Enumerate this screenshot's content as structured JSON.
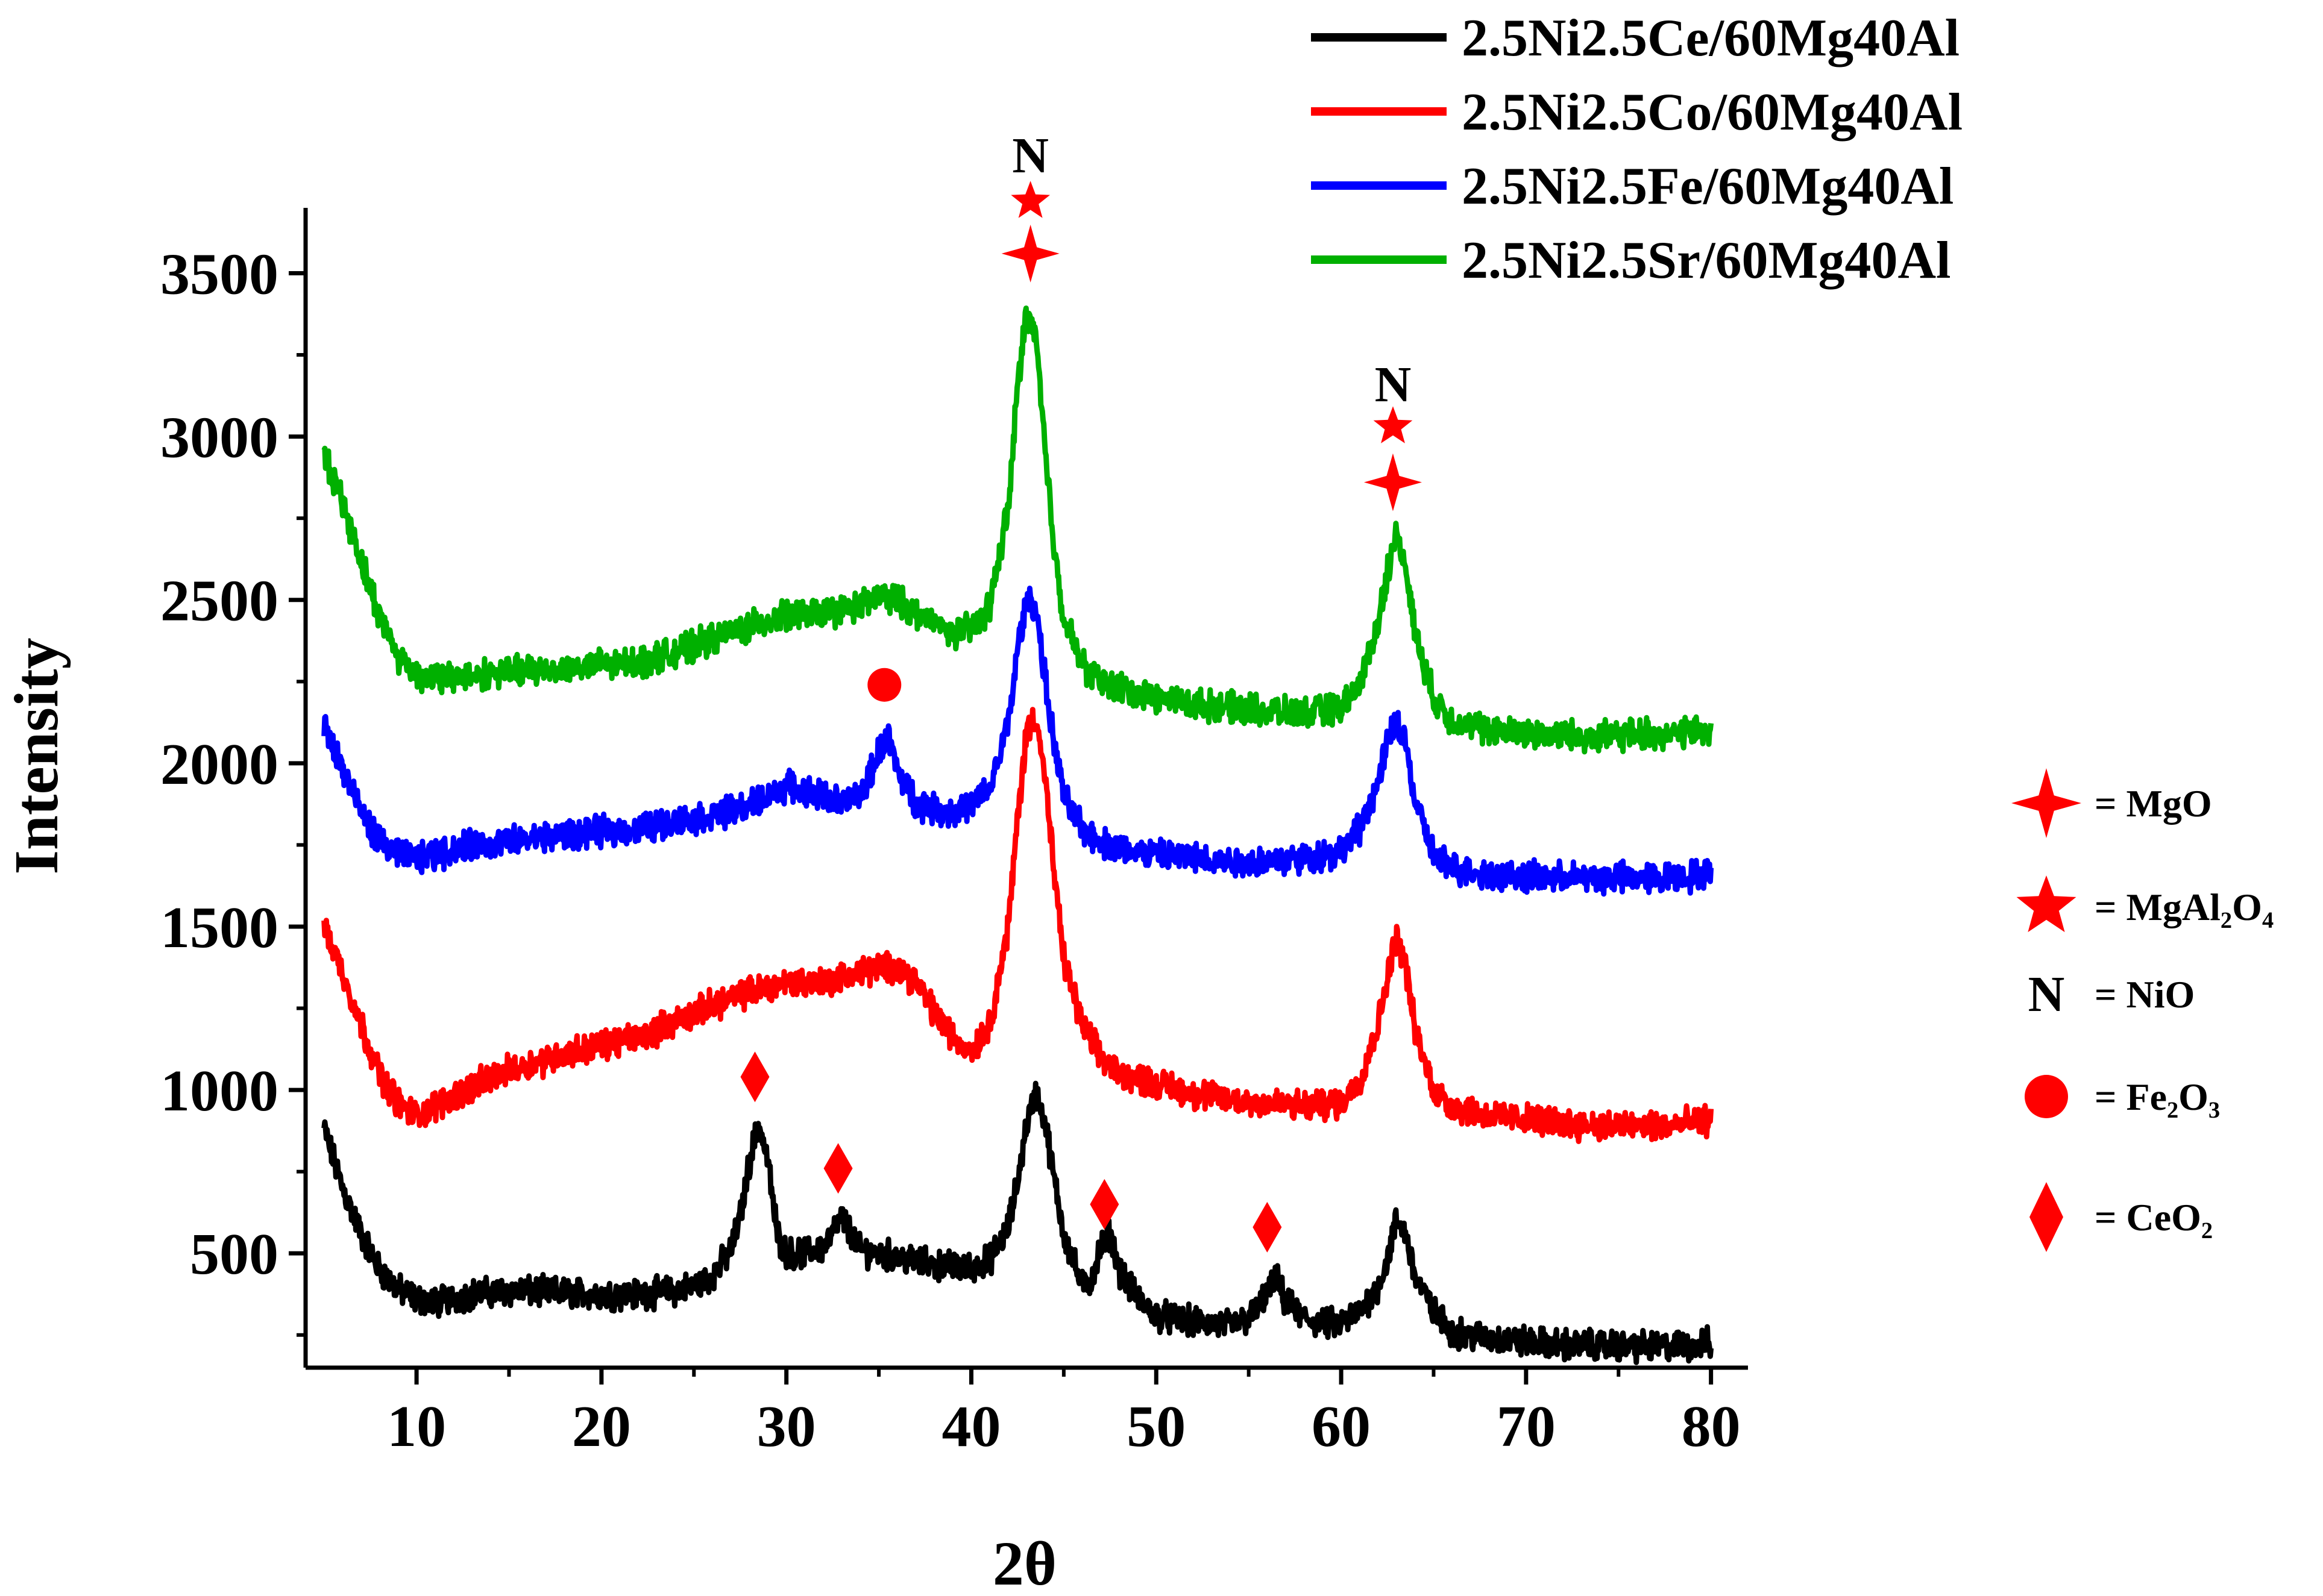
{
  "chart_data": {
    "type": "line",
    "title": "",
    "xlabel": "2θ",
    "ylabel": "Intensity",
    "xlim": [
      4,
      82
    ],
    "ylim": [
      150,
      3700
    ],
    "x_ticks": [
      10,
      20,
      30,
      40,
      50,
      60,
      70,
      80
    ],
    "y_ticks": [
      500,
      1000,
      1500,
      2000,
      2500,
      3000,
      3500
    ],
    "grid": false,
    "legend_position": "top-right",
    "series": [
      {
        "name": "2.5Ni2.5Ce/60Mg40Al",
        "color": "#000000",
        "x": [
          5,
          6,
          7,
          8,
          9,
          10,
          11,
          13,
          15,
          18,
          20,
          22,
          24,
          25,
          26,
          27,
          27.5,
          28,
          28.5,
          29,
          29.5,
          30,
          31,
          32,
          32.5,
          33,
          33.5,
          34,
          35,
          36,
          37,
          38,
          39,
          40,
          41,
          42,
          42.5,
          43,
          43.5,
          44,
          44.5,
          45,
          46,
          46.5,
          47,
          47.5,
          48,
          49,
          50,
          52,
          54,
          55,
          55.5,
          56,
          56.5,
          57,
          58,
          59,
          60,
          61,
          62,
          62.5,
          63,
          63.5,
          64,
          65,
          66,
          68,
          70,
          72,
          74,
          76,
          78,
          80
        ],
        "values": [
          880,
          700,
          560,
          450,
          390,
          360,
          350,
          375,
          385,
          380,
          375,
          375,
          385,
          400,
          430,
          510,
          610,
          780,
          900,
          780,
          560,
          500,
          500,
          520,
          560,
          610,
          560,
          510,
          500,
          490,
          475,
          465,
          460,
          455,
          480,
          580,
          720,
          900,
          990,
          900,
          720,
          560,
          400,
          420,
          520,
          560,
          450,
          360,
          310,
          290,
          280,
          300,
          330,
          380,
          420,
          350,
          300,
          285,
          285,
          320,
          400,
          480,
          600,
          560,
          430,
          320,
          260,
          240,
          230,
          220,
          220,
          215,
          215,
          225
        ]
      },
      {
        "name": "2.5Ni2.5Co/60Mg40Al",
        "color": "#ff0000",
        "x": [
          5,
          6,
          7,
          8,
          9,
          10,
          11,
          13,
          15,
          18,
          20,
          22,
          24,
          26,
          28,
          30,
          32,
          34,
          35,
          36,
          37,
          38,
          39,
          40,
          41,
          42,
          42.5,
          43,
          43.5,
          44,
          44.5,
          45,
          46,
          47,
          48,
          50,
          52,
          54,
          56,
          58,
          60,
          61,
          62,
          62.5,
          63,
          63.5,
          64,
          65,
          66,
          68,
          70,
          72,
          74,
          76,
          78,
          80
        ],
        "values": [
          1500,
          1360,
          1200,
          1050,
          960,
          920,
          950,
          1010,
          1060,
          1110,
          1140,
          1160,
          1210,
          1260,
          1300,
          1330,
          1330,
          1360,
          1370,
          1380,
          1330,
          1240,
          1160,
          1120,
          1200,
          1500,
          1830,
          2100,
          2150,
          1950,
          1650,
          1400,
          1200,
          1100,
          1050,
          1020,
          990,
          970,
          960,
          950,
          960,
          1030,
          1200,
          1350,
          1470,
          1380,
          1180,
          1000,
          950,
          920,
          910,
          900,
          890,
          890,
          890,
          910
        ]
      },
      {
        "name": "2.5Ni2.5Fe/60Mg40Al",
        "color": "#0000ff",
        "x": [
          5,
          6,
          7,
          8,
          9,
          10,
          11,
          13,
          15,
          18,
          20,
          22,
          24,
          26,
          28,
          30,
          32,
          33,
          34,
          34.5,
          35,
          35.5,
          36,
          37,
          38,
          39,
          40,
          41,
          42,
          42.5,
          43,
          43.5,
          44,
          44.5,
          45,
          46,
          47,
          48,
          50,
          52,
          54,
          56,
          58,
          60,
          61,
          62,
          62.5,
          63,
          63.5,
          64,
          65,
          66,
          68,
          70,
          72,
          74,
          76,
          78,
          80
        ],
        "values": [
          2120,
          1980,
          1850,
          1760,
          1720,
          1710,
          1720,
          1750,
          1760,
          1780,
          1790,
          1800,
          1820,
          1840,
          1870,
          1930,
          1900,
          1880,
          1900,
          1960,
          2040,
          2080,
          1980,
          1880,
          1860,
          1850,
          1870,
          1920,
          2120,
          2350,
          2500,
          2480,
          2250,
          2050,
          1900,
          1800,
          1760,
          1740,
          1720,
          1710,
          1700,
          1700,
          1710,
          1730,
          1800,
          1940,
          2060,
          2130,
          2060,
          1880,
          1720,
          1680,
          1660,
          1650,
          1650,
          1650,
          1650,
          1650,
          1660
        ]
      },
      {
        "name": "2.5Ni2.5Sr/60Mg40Al",
        "color": "#00b000",
        "x": [
          5,
          5.5,
          6,
          7,
          8,
          9,
          10,
          11,
          13,
          15,
          18,
          20,
          22,
          24,
          26,
          28,
          30,
          32,
          34,
          35,
          36,
          37,
          38,
          39,
          40,
          41,
          42,
          42.5,
          43,
          43.5,
          44,
          44.5,
          45,
          46,
          47,
          48,
          50,
          52,
          54,
          56,
          58,
          60,
          61,
          62,
          62.5,
          63,
          63.5,
          64,
          65,
          66,
          68,
          70,
          72,
          74,
          76,
          78,
          80
        ],
        "values": [
          2940,
          2880,
          2800,
          2620,
          2450,
          2330,
          2270,
          2260,
          2270,
          2280,
          2290,
          2300,
          2310,
          2340,
          2380,
          2420,
          2450,
          2460,
          2480,
          2510,
          2500,
          2460,
          2430,
          2400,
          2410,
          2480,
          2780,
          3150,
          3390,
          3300,
          2950,
          2650,
          2450,
          2300,
          2250,
          2230,
          2200,
          2180,
          2170,
          2160,
          2150,
          2170,
          2240,
          2430,
          2590,
          2700,
          2600,
          2400,
          2200,
          2130,
          2100,
          2090,
          2090,
          2080,
          2090,
          2090,
          2100
        ]
      }
    ],
    "peak_markers": [
      {
        "phase": "MgO",
        "symbol": "cross-star",
        "x": 43.2,
        "y": 3560
      },
      {
        "phase": "MgAl2O4",
        "symbol": "star",
        "x": 43.2,
        "y": 3720
      },
      {
        "phase": "NiO",
        "symbol": "N",
        "x": 43.2,
        "y": 3860
      },
      {
        "phase": "MgO",
        "symbol": "cross-star",
        "x": 62.8,
        "y": 2860
      },
      {
        "phase": "MgAl2O4",
        "symbol": "star",
        "x": 62.8,
        "y": 3030
      },
      {
        "phase": "NiO",
        "symbol": "N",
        "x": 62.8,
        "y": 3160
      },
      {
        "phase": "Fe2O3",
        "symbol": "circle",
        "x": 35.3,
        "y": 2240
      },
      {
        "phase": "CeO2",
        "symbol": "diamond",
        "x": 28.3,
        "y": 1040
      },
      {
        "phase": "CeO2",
        "symbol": "diamond",
        "x": 32.8,
        "y": 760
      },
      {
        "phase": "CeO2",
        "symbol": "diamond",
        "x": 47.2,
        "y": 650
      },
      {
        "phase": "CeO2",
        "symbol": "diamond",
        "x": 56.0,
        "y": 580
      }
    ],
    "peak_label_text": "N",
    "marker_key": [
      {
        "symbol": "cross-star",
        "label": "= MgO"
      },
      {
        "symbol": "star",
        "label": "= MgAl₂O₄"
      },
      {
        "symbol": "N",
        "label": "= NiO",
        "glyph": "N"
      },
      {
        "symbol": "circle",
        "label": "= Fe₂O₃"
      },
      {
        "symbol": "diamond",
        "label": "= CeO₂"
      }
    ],
    "marker_color": "#ff0000"
  }
}
